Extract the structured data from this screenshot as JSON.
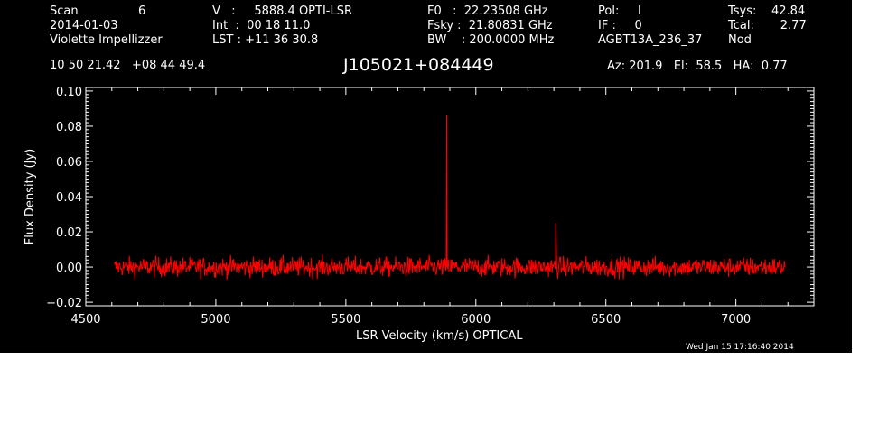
{
  "header": {
    "scan_label": "Scan",
    "scan_number": "6",
    "date": "2014-01-03",
    "observer": "Violette Impellizzer",
    "coords": "10 50 21.42   +08 44 49.4",
    "velocity": "V   :     5888.4 OPTI-LSR",
    "int_time": "Int  :  00 18 11.0",
    "lst": "LST : +11 36 30.8",
    "f0": "F0   :  22.23508 GHz",
    "fsky": "Fsky :  21.80831 GHz",
    "bw": "BW    : 200.0000 MHz",
    "pol": "Pol:     I",
    "if": "IF :     0",
    "project": "AGBT13A_236_37",
    "tsys": "Tsys:    42.84",
    "tcal": "Tcal:       2.77",
    "nod": "Nod",
    "source": "J105021+084449",
    "pointing": "Az: 201.9   El:  58.5   HA:  0.77"
  },
  "timestamp": "Wed Jan 15 17:16:40 2014",
  "colors": {
    "background": "#000000",
    "axes": "#ffffff",
    "trace": "#ff0000"
  },
  "chart_data": {
    "type": "line",
    "xlabel": "LSR Velocity (km/s) OPTICAL",
    "ylabel": "Flux Density (Jy)",
    "xlim": [
      4500,
      7300
    ],
    "ylim": [
      -0.022,
      0.102
    ],
    "x_ticks": [
      4500,
      5000,
      5500,
      6000,
      6500,
      7000
    ],
    "x_tick_labels": [
      "4500",
      "5000",
      "5500",
      "6000",
      "6500",
      "7000"
    ],
    "y_ticks": [
      -0.02,
      0.0,
      0.02,
      0.04,
      0.06,
      0.08,
      0.1
    ],
    "y_tick_labels": [
      "−0.02",
      "0.00",
      "0.02",
      "0.04",
      "0.06",
      "0.08",
      "0.10"
    ],
    "grid": false,
    "series": [
      {
        "x_range": [
          4610,
          7190
        ],
        "baseline": 0.0,
        "noise_rms": 0.004,
        "peaks": [
          {
            "x": 5888,
            "y": 0.086
          },
          {
            "x": 6308,
            "y": 0.025
          }
        ]
      }
    ]
  }
}
